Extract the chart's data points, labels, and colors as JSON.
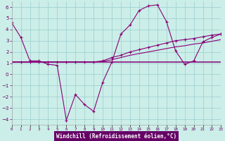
{
  "x": [
    0,
    1,
    2,
    3,
    4,
    5,
    6,
    7,
    8,
    9,
    10,
    11,
    12,
    13,
    14,
    15,
    16,
    17,
    18,
    19,
    20,
    21,
    22,
    23
  ],
  "curve_main": [
    4.6,
    3.3,
    1.2,
    1.2,
    0.9,
    0.8,
    -4.1,
    -1.8,
    -2.7,
    -3.3,
    -0.7,
    1.1,
    3.6,
    4.4,
    5.7,
    6.1,
    6.2,
    4.7,
    2.1,
    0.9,
    1.2,
    2.9,
    3.3,
    3.6
  ],
  "curve_flat": [
    1.1,
    1.1,
    1.1,
    1.1,
    1.1,
    1.1,
    1.1,
    1.1,
    1.1,
    1.1,
    1.1,
    1.1,
    1.1,
    1.1,
    1.1,
    1.1,
    1.1,
    1.1,
    1.1,
    1.1,
    1.1,
    1.1,
    1.1,
    1.1
  ],
  "curve_rise1": [
    1.1,
    1.1,
    1.1,
    1.1,
    1.1,
    1.1,
    1.1,
    1.1,
    1.1,
    1.1,
    1.2,
    1.5,
    1.7,
    2.0,
    2.2,
    2.4,
    2.6,
    2.8,
    3.0,
    3.1,
    3.2,
    3.35,
    3.5,
    3.6
  ],
  "curve_rise2": [
    1.1,
    1.1,
    1.1,
    1.1,
    1.1,
    1.1,
    1.1,
    1.1,
    1.1,
    1.1,
    1.15,
    1.3,
    1.5,
    1.7,
    1.85,
    2.0,
    2.15,
    2.3,
    2.45,
    2.55,
    2.7,
    2.8,
    2.95,
    3.1
  ],
  "line_color": "#880077",
  "bg_color": "#cceee8",
  "plot_bg": "#cceee8",
  "grid_color": "#99cccc",
  "xlabel": "Windchill (Refroidissement éolien,°C)",
  "xlabel_bg": "#660066",
  "xlabel_color": "#ffffff",
  "xlim": [
    0,
    23
  ],
  "ylim": [
    -4.5,
    6.5
  ],
  "yticks": [
    -4,
    -3,
    -2,
    -1,
    0,
    1,
    2,
    3,
    4,
    5,
    6
  ],
  "xtick_labels": [
    "0",
    "1",
    "2",
    "3",
    "4",
    "5",
    "6",
    "7",
    "8",
    "9",
    "10",
    "11",
    "12",
    "13",
    "14",
    "15",
    "16",
    "17",
    "18",
    "19",
    "20",
    "21",
    "22",
    "23"
  ]
}
